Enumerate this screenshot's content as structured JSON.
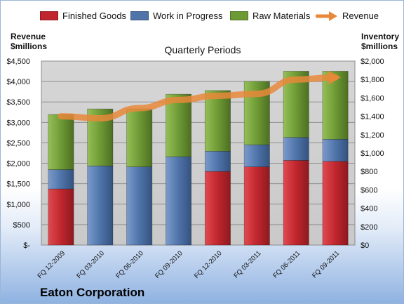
{
  "legend": {
    "finished_goods": "Finished Goods",
    "work_in_progress": "Work in Progress",
    "raw_materials": "Raw Materials",
    "revenue": "Revenue"
  },
  "left_axis": {
    "line1": "Revenue",
    "line2": "$millions"
  },
  "right_axis": {
    "line1": "Inventory",
    "line2": "$millions"
  },
  "plot_title": "Quarterly Periods",
  "company": "Eaton Corporation",
  "colors": {
    "finished_goods": "#c0262d",
    "work_in_progress": "#4f74aa",
    "raw_materials": "#6e9a35",
    "revenue": "#e8883a",
    "plot_bg": "#c9c9c9"
  },
  "chart_data": {
    "type": "bar",
    "stacked": true,
    "categories": [
      "FQ 12-2009",
      "FQ 03-2010",
      "FQ 06-2010",
      "FQ 09-2010",
      "FQ 12-2010",
      "FQ 03-2011",
      "FQ 06-2011",
      "FQ 09-2011"
    ],
    "series": [
      {
        "name": "Finished Goods",
        "axis": "right",
        "values": [
          610,
          0,
          0,
          0,
          800,
          850,
          920,
          910
        ]
      },
      {
        "name": "Work in Progress",
        "axis": "right",
        "values": [
          210,
          860,
          850,
          960,
          220,
          240,
          250,
          240
        ]
      },
      {
        "name": "Raw Materials",
        "axis": "right",
        "values": [
          600,
          620,
          630,
          680,
          660,
          690,
          720,
          740
        ]
      },
      {
        "name": "Revenue",
        "axis": "left",
        "kind": "line",
        "values": [
          3150,
          3100,
          3350,
          3550,
          3650,
          3700,
          4050,
          4100
        ]
      }
    ],
    "y_left": {
      "ylim": [
        0,
        4500
      ],
      "ticks": [
        "$-",
        "$500",
        "$1,000",
        "$1,500",
        "$2,000",
        "$2,500",
        "$3,000",
        "$3,500",
        "$4,000",
        "$4,500"
      ]
    },
    "y_right": {
      "ylim": [
        0,
        2000
      ],
      "ticks": [
        "$0",
        "$200",
        "$400",
        "$600",
        "$800",
        "$1,000",
        "$1,200",
        "$1,400",
        "$1,600",
        "$1,800",
        "$2,000"
      ]
    },
    "grid": true,
    "legend_position": "top"
  }
}
